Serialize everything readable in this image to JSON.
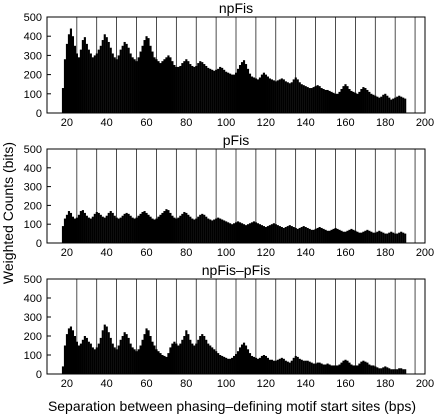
{
  "figure": {
    "ylabel": "Weighted Counts (bits)",
    "xlabel": "Separation between phasing–defining motif start sites (bps)"
  },
  "chart_data": [
    {
      "type": "bar",
      "title": "npFis",
      "xlim": [
        10,
        200
      ],
      "ylim": [
        0,
        500
      ],
      "xticks": [
        20,
        40,
        60,
        80,
        100,
        120,
        140,
        160,
        180,
        200
      ],
      "yticks": [
        0,
        100,
        200,
        300,
        400,
        500
      ],
      "reference_lines_x": [
        25,
        35,
        45,
        55,
        65,
        75,
        85,
        95,
        105,
        115,
        125,
        135,
        145,
        155,
        165,
        175,
        185,
        195
      ],
      "x_start": 18,
      "x_step": 1,
      "values": [
        130,
        280,
        360,
        410,
        440,
        400,
        350,
        310,
        290,
        330,
        380,
        395,
        360,
        330,
        310,
        290,
        300,
        310,
        330,
        350,
        380,
        410,
        395,
        370,
        340,
        310,
        290,
        280,
        300,
        330,
        350,
        370,
        360,
        340,
        310,
        290,
        280,
        270,
        290,
        320,
        350,
        380,
        400,
        390,
        350,
        320,
        290,
        280,
        270,
        260,
        270,
        280,
        290,
        300,
        290,
        270,
        250,
        240,
        240,
        245,
        260,
        270,
        280,
        270,
        255,
        245,
        240,
        245,
        260,
        270,
        265,
        255,
        245,
        235,
        230,
        225,
        220,
        225,
        230,
        240,
        235,
        225,
        215,
        210,
        205,
        200,
        200,
        210,
        230,
        250,
        265,
        275,
        255,
        230,
        205,
        190,
        185,
        180,
        175,
        185,
        200,
        210,
        200,
        190,
        180,
        175,
        170,
        165,
        170,
        175,
        180,
        175,
        165,
        160,
        155,
        160,
        175,
        185,
        175,
        160,
        150,
        145,
        140,
        135,
        130,
        130,
        135,
        140,
        145,
        140,
        130,
        125,
        120,
        120,
        115,
        110,
        105,
        100,
        100,
        110,
        125,
        140,
        150,
        140,
        125,
        115,
        110,
        105,
        100,
        110,
        125,
        135,
        130,
        120,
        110,
        100,
        95,
        90,
        85,
        80,
        85,
        95,
        100,
        90,
        80,
        70,
        75,
        80,
        85,
        90,
        85,
        80,
        75
      ]
    },
    {
      "type": "bar",
      "title": "pFis",
      "xlim": [
        10,
        200
      ],
      "ylim": [
        0,
        500
      ],
      "xticks": [
        20,
        40,
        60,
        80,
        100,
        120,
        140,
        160,
        180,
        200
      ],
      "yticks": [
        0,
        100,
        200,
        300,
        400,
        500
      ],
      "reference_lines_x": [
        25,
        35,
        45,
        55,
        65,
        75,
        85,
        95,
        105,
        115,
        125,
        135,
        145,
        155,
        165,
        175,
        185,
        195
      ],
      "x_start": 18,
      "x_step": 1,
      "values": [
        90,
        130,
        150,
        170,
        160,
        140,
        130,
        135,
        150,
        170,
        175,
        160,
        145,
        135,
        130,
        140,
        155,
        165,
        160,
        150,
        140,
        135,
        145,
        160,
        170,
        160,
        145,
        135,
        130,
        135,
        145,
        155,
        160,
        155,
        145,
        135,
        130,
        135,
        145,
        155,
        165,
        170,
        160,
        150,
        140,
        130,
        125,
        130,
        140,
        150,
        160,
        170,
        180,
        175,
        160,
        145,
        135,
        130,
        135,
        145,
        155,
        165,
        160,
        150,
        140,
        130,
        125,
        130,
        140,
        150,
        155,
        150,
        140,
        130,
        125,
        120,
        125,
        130,
        135,
        130,
        125,
        120,
        115,
        110,
        105,
        100,
        105,
        110,
        115,
        110,
        105,
        100,
        95,
        100,
        105,
        110,
        115,
        110,
        105,
        100,
        95,
        90,
        85,
        90,
        95,
        100,
        105,
        100,
        95,
        90,
        85,
        80,
        85,
        90,
        95,
        90,
        85,
        80,
        75,
        80,
        85,
        90,
        85,
        80,
        75,
        70,
        70,
        75,
        80,
        85,
        80,
        75,
        70,
        65,
        65,
        70,
        75,
        80,
        75,
        70,
        65,
        60,
        60,
        65,
        70,
        75,
        70,
        65,
        60,
        55,
        55,
        60,
        65,
        70,
        65,
        60,
        55,
        55,
        60,
        65,
        60,
        55,
        50,
        50,
        55,
        60,
        55,
        50,
        50,
        55,
        60,
        55,
        50
      ]
    },
    {
      "type": "bar",
      "title": "npFis–pFis",
      "xlim": [
        10,
        200
      ],
      "ylim": [
        0,
        500
      ],
      "xticks": [
        20,
        40,
        60,
        80,
        100,
        120,
        140,
        160,
        180,
        200
      ],
      "yticks": [
        0,
        100,
        200,
        300,
        400,
        500
      ],
      "reference_lines_x": [
        25,
        35,
        45,
        55,
        65,
        75,
        85,
        95,
        105,
        115,
        125,
        135,
        145,
        155,
        165,
        175,
        185,
        195
      ],
      "x_start": 18,
      "x_step": 1,
      "values": [
        40,
        150,
        210,
        240,
        250,
        230,
        200,
        170,
        150,
        160,
        180,
        200,
        190,
        170,
        160,
        140,
        130,
        140,
        160,
        190,
        230,
        260,
        250,
        220,
        190,
        160,
        140,
        130,
        150,
        180,
        200,
        220,
        210,
        190,
        160,
        140,
        130,
        120,
        130,
        150,
        180,
        210,
        240,
        230,
        200,
        170,
        150,
        130,
        120,
        110,
        100,
        95,
        90,
        110,
        140,
        160,
        170,
        160,
        150,
        160,
        180,
        200,
        230,
        210,
        180,
        160,
        150,
        160,
        180,
        200,
        210,
        200,
        180,
        160,
        150,
        140,
        130,
        120,
        110,
        100,
        95,
        90,
        85,
        80,
        80,
        85,
        95,
        105,
        120,
        140,
        155,
        165,
        150,
        130,
        110,
        95,
        90,
        85,
        80,
        85,
        95,
        100,
        95,
        85,
        75,
        75,
        70,
        70,
        75,
        80,
        85,
        80,
        70,
        65,
        60,
        70,
        85,
        95,
        90,
        80,
        75,
        70,
        70,
        70,
        65,
        60,
        55,
        55,
        60,
        60,
        55,
        50,
        50,
        55,
        50,
        45,
        45,
        45,
        45,
        50,
        60,
        70,
        75,
        70,
        60,
        50,
        45,
        45,
        45,
        55,
        65,
        70,
        65,
        60,
        50,
        45,
        45,
        40,
        35,
        30,
        30,
        35,
        40,
        35,
        30,
        25,
        25,
        25,
        25,
        30,
        30,
        25,
        25
      ]
    }
  ]
}
